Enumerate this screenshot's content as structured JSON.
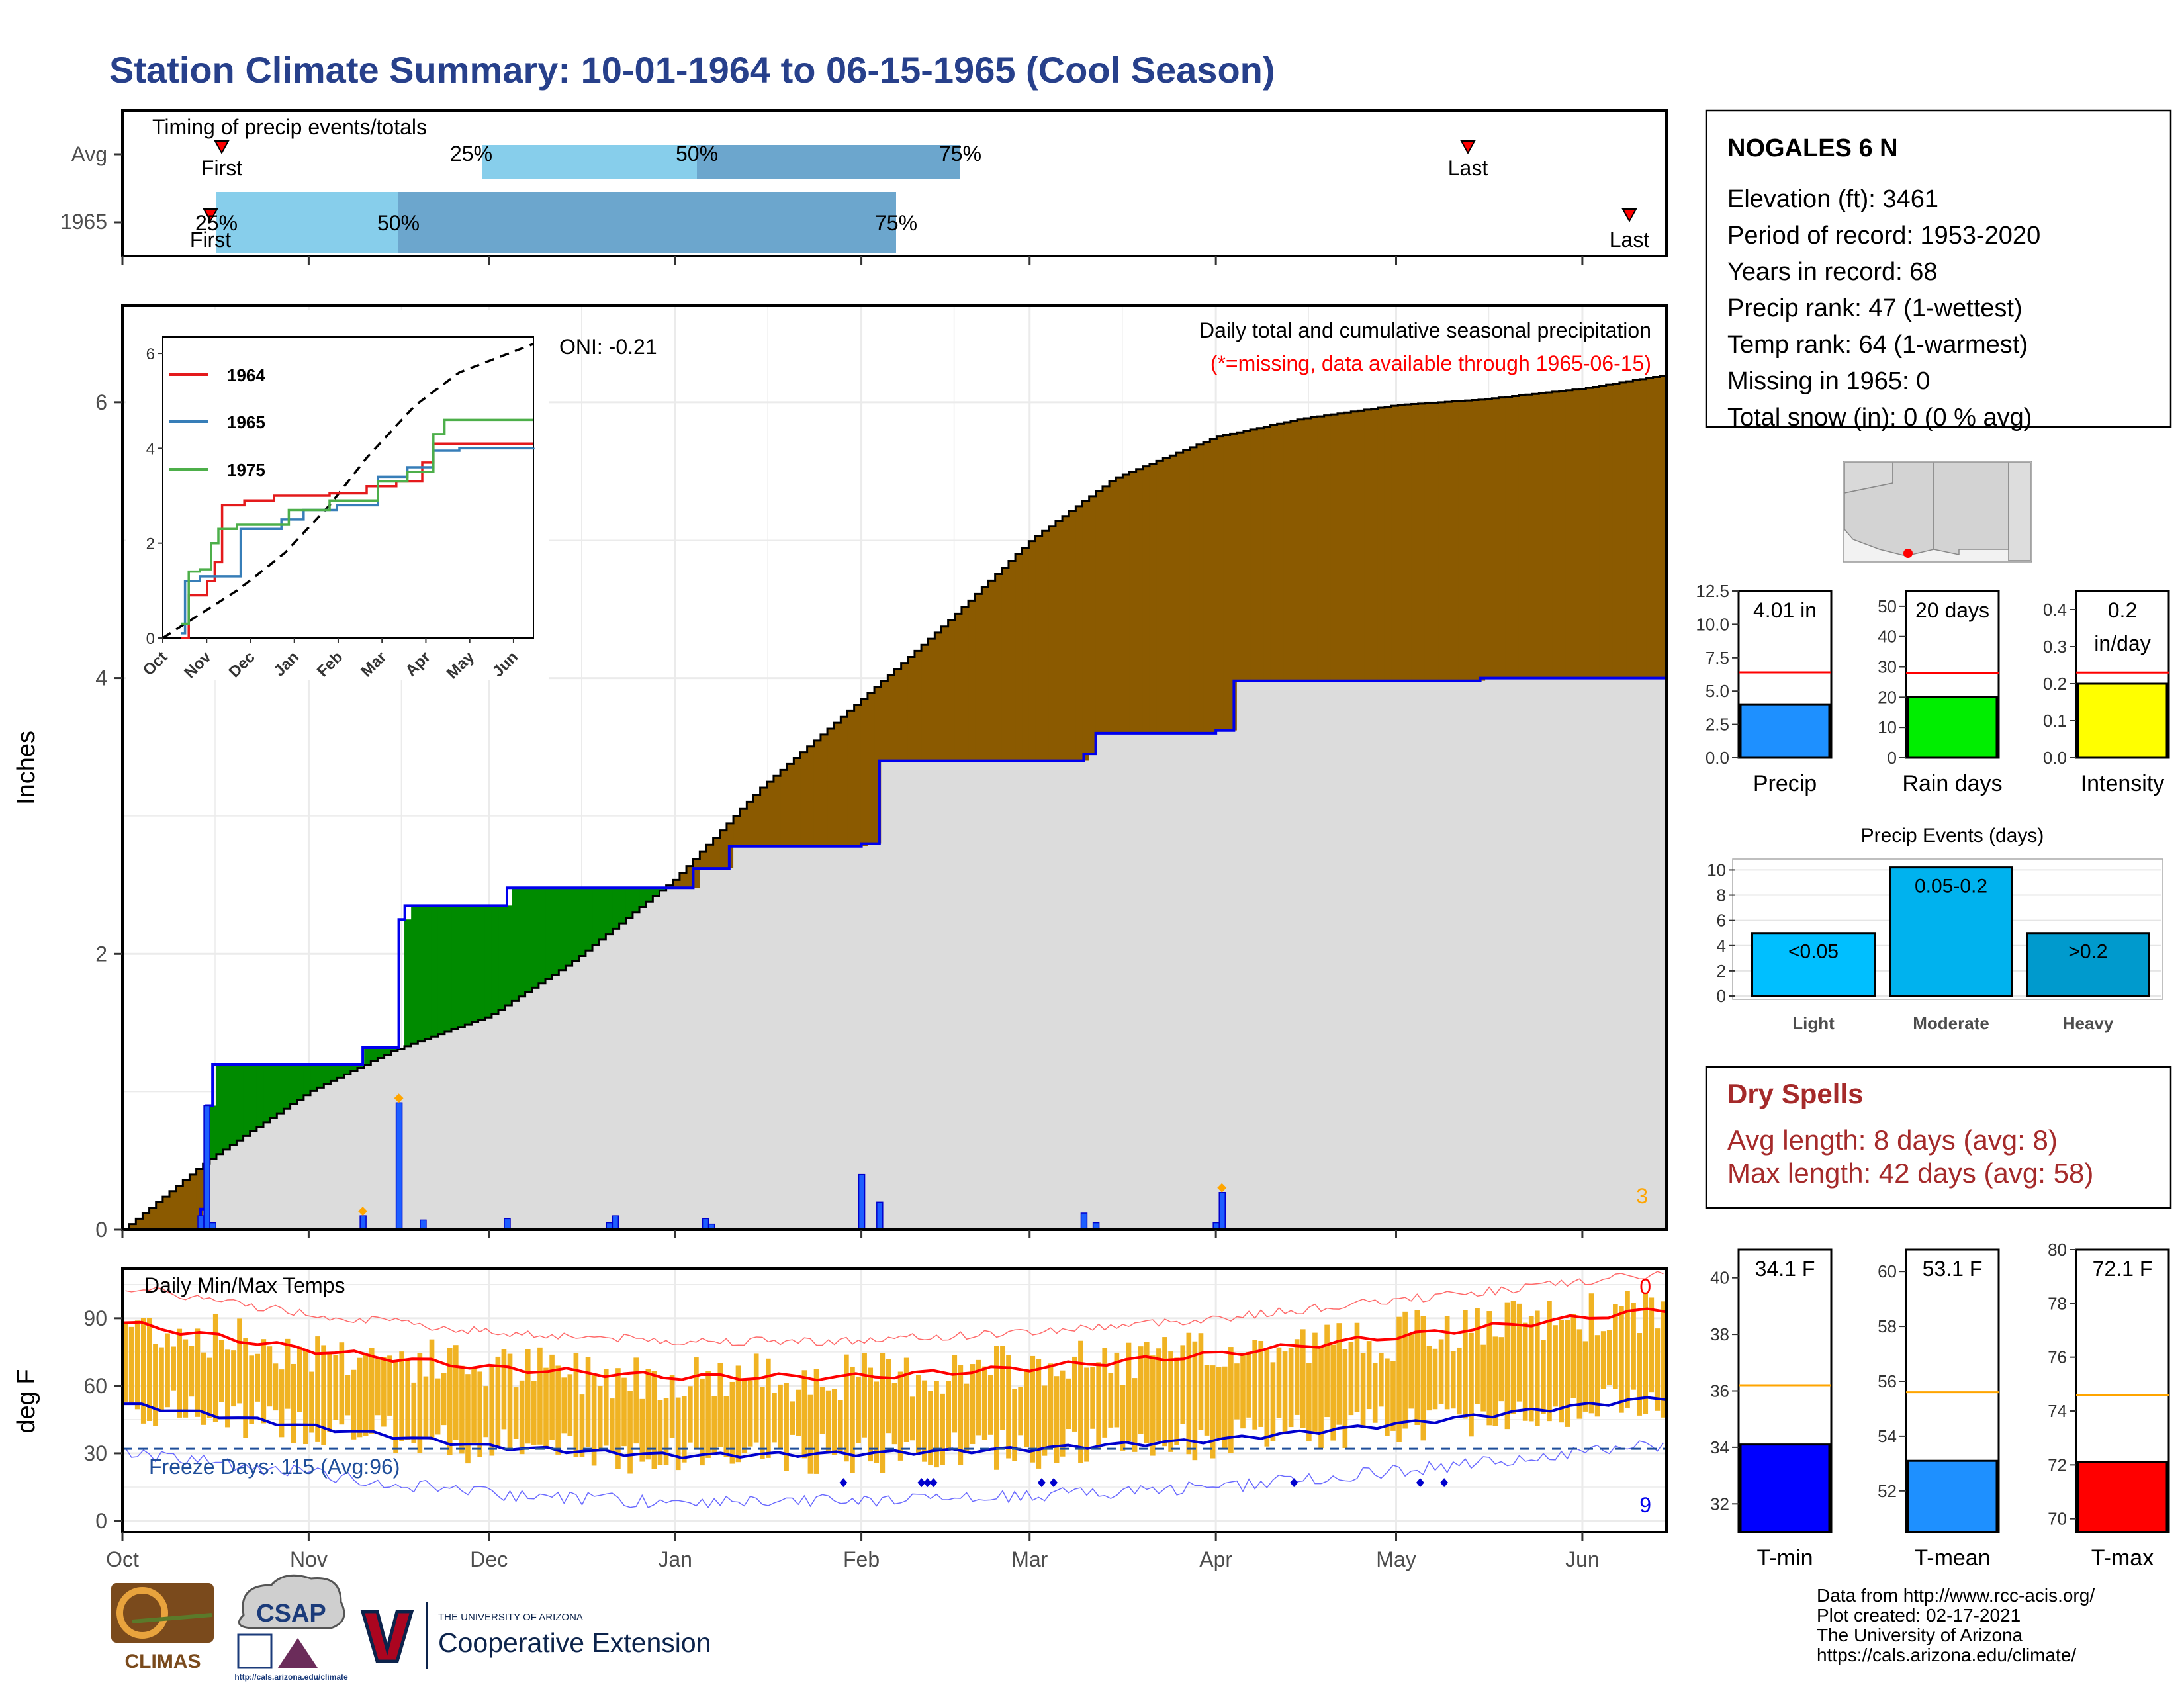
{
  "title": "Station Climate Summary: 10-01-1964 to 06-15-1965 (Cool Season)",
  "colors": {
    "title": "#27408B",
    "precip_above": "#8B5A00",
    "precip_below": "#008B00",
    "avg_fill": "#DCDCDC",
    "current_line": "#0000EE",
    "bar_light": "#87CEEB",
    "bar_dark": "#6CA6CD",
    "temp_bar": "#F0B323",
    "tmax_avg": "#FF0000",
    "tmin_avg": "#0000CD",
    "freeze_line": "#1F4E9A",
    "dry_spell": "#A52A2A"
  },
  "timing_panel": {
    "title": "Timing of precip events/totals",
    "rows": [
      {
        "label": "Avg",
        "first": "First",
        "last": "Last",
        "p25": "25%",
        "p50": "50%",
        "p75": "75%"
      },
      {
        "label": "1965",
        "first": "First",
        "last": "Last",
        "p25": "25%",
        "p50": "50%",
        "p75": "75%"
      }
    ]
  },
  "precip_panel": {
    "ylabel": "Inches",
    "yticks": [
      "0",
      "2",
      "4",
      "6"
    ],
    "label1": "Daily total and cumulative seasonal precipitation",
    "label2": "(*=missing, data available through 1965-06-15)",
    "oni": "ONI: -0.21",
    "count_marker": "3"
  },
  "inset": {
    "yticks": [
      "0",
      "2",
      "4",
      "6"
    ],
    "xticks": [
      "Oct",
      "Nov",
      "Dec",
      "Jan",
      "Feb",
      "Mar",
      "Apr",
      "May",
      "Jun"
    ],
    "legend": [
      {
        "name": "1964",
        "color": "#E41A1C"
      },
      {
        "name": "1965",
        "color": "#377EB8"
      },
      {
        "name": "1975",
        "color": "#4DAF4A"
      }
    ]
  },
  "temp_panel": {
    "ylabel": "deg F",
    "yticks": [
      "0",
      "30",
      "60",
      "90"
    ],
    "title": "Daily Min/Max Temps",
    "freeze": "Freeze Days: 115 (Avg:96)",
    "count_top": "0",
    "count_bottom": "9",
    "xticks": [
      "Oct",
      "Nov",
      "Dec",
      "Jan",
      "Feb",
      "Mar",
      "Apr",
      "May",
      "Jun"
    ]
  },
  "station": {
    "name": "NOGALES 6 N",
    "lines": [
      "Elevation (ft): 3461",
      "Period of record: 1953-2020",
      "Years in record: 68",
      "Precip rank: 47 (1-wettest)",
      "Temp rank: 64 (1-warmest)",
      "Missing in 1965: 0",
      "Total snow (in): 0 (0 % avg)"
    ]
  },
  "gauges": [
    {
      "label": "Precip",
      "value_text": "4.01 in",
      "value": 4.01,
      "avg": 6.4,
      "ymax": 12.5,
      "ticks": [
        "0.0",
        "2.5",
        "5.0",
        "7.5",
        "10.0",
        "12.5"
      ],
      "color": "#1E90FF"
    },
    {
      "label": "Rain days",
      "value_text": "20 days",
      "value": 20,
      "avg": 28,
      "ymax": 55,
      "ticks": [
        "0",
        "10",
        "20",
        "30",
        "40",
        "50"
      ],
      "color": "#00EE00"
    },
    {
      "label": "Intensity",
      "value_text": "0.2",
      "value_text2": "in/day",
      "value": 0.2,
      "avg": 0.23,
      "ymax": 0.45,
      "ticks": [
        "0.0",
        "0.1",
        "0.2",
        "0.3",
        "0.4"
      ],
      "color": "#FFFF00"
    }
  ],
  "precip_events": {
    "title": "Precip Events (days)",
    "yticks": [
      "0",
      "2",
      "4",
      "6",
      "8",
      "10"
    ],
    "bars": [
      {
        "category": "Light",
        "label": "<0.05",
        "value": 5,
        "color": "#00BFFF"
      },
      {
        "category": "Moderate",
        "label": "0.05-0.2",
        "value": 10.2,
        "color": "#00B2EE"
      },
      {
        "category": "Heavy",
        "label": ">0.2",
        "value": 5,
        "color": "#009ACD"
      }
    ]
  },
  "dry_spells": {
    "title": "Dry Spells",
    "avg": "Avg length: 8 days (avg: 8)",
    "max": "Max length: 42 days (avg: 58)"
  },
  "temp_gauges": [
    {
      "label": "T-min",
      "value_text": "34.1 F",
      "value": 34.1,
      "avg": 36.2,
      "ymin": 31,
      "ymax": 41,
      "ticks": [
        "32",
        "34",
        "36",
        "38",
        "40"
      ],
      "color": "#0000FF"
    },
    {
      "label": "T-mean",
      "value_text": "53.1 F",
      "value": 53.1,
      "avg": 55.6,
      "ymin": 50.5,
      "ymax": 60.8,
      "ticks": [
        "52",
        "54",
        "56",
        "58",
        "60"
      ],
      "color": "#1E90FF"
    },
    {
      "label": "T-max",
      "value_text": "72.1 F",
      "value": 72.1,
      "avg": 74.6,
      "ymin": 69.5,
      "ymax": 80,
      "ticks": [
        "70",
        "72",
        "74",
        "76",
        "78",
        "80"
      ],
      "color": "#FF0000"
    }
  ],
  "footer": {
    "lines": [
      "Data from http://www.rcc-acis.org/",
      "Plot created: 02-17-2021",
      "The University of Arizona",
      "https://cals.arizona.edu/climate/"
    ],
    "logo_climas": "CLIMAS",
    "logo_csap": "CSAP",
    "logo_csap_url": "http://cals.arizona.edu/climate",
    "ua_small": "THE UNIVERSITY OF ARIZONA",
    "ua_big": "Cooperative Extension"
  },
  "chart_data": [
    {
      "type": "area",
      "title": "Daily total and cumulative seasonal precipitation",
      "ylabel": "Inches",
      "ylim": [
        0,
        6.7
      ],
      "x_range": [
        "1964-10-01",
        "1965-06-15"
      ],
      "series": [
        {
          "name": "Avg",
          "x": [
            "1964-10-01",
            "1964-10-15",
            "1964-11-01",
            "1964-11-15",
            "1964-12-01",
            "1964-12-15",
            "1965-01-01",
            "1965-01-15",
            "1965-02-01",
            "1965-02-15",
            "1965-03-01",
            "1965-03-15",
            "1965-04-01",
            "1965-04-15",
            "1965-05-01",
            "1965-05-15",
            "1965-06-01",
            "1965-06-15"
          ],
          "values": [
            0.0,
            0.5,
            1.0,
            1.3,
            1.55,
            1.95,
            2.55,
            3.2,
            3.85,
            4.4,
            5.0,
            5.45,
            5.75,
            5.88,
            5.98,
            6.02,
            6.1,
            6.2
          ]
        },
        {
          "name": "1965",
          "x": [
            "1964-10-14",
            "1964-10-15",
            "1964-10-16",
            "1964-11-10",
            "1964-11-16",
            "1964-11-17",
            "1964-12-04",
            "1965-01-04",
            "1965-01-10",
            "1965-02-01",
            "1965-02-04",
            "1965-03-10",
            "1965-03-12",
            "1965-04-01",
            "1965-04-04",
            "1965-05-15",
            "1965-06-15"
          ],
          "values": [
            0.15,
            0.9,
            1.2,
            1.32,
            2.25,
            2.35,
            2.48,
            2.62,
            2.78,
            2.8,
            3.4,
            3.45,
            3.6,
            3.62,
            3.98,
            4.0,
            4.01
          ]
        }
      ]
    },
    {
      "type": "bar",
      "title": "Daily precip",
      "x": [
        "1964-10-14",
        "1964-10-15",
        "1964-10-16",
        "1964-11-10",
        "1964-11-16",
        "1964-11-20",
        "1964-12-04",
        "1964-12-21",
        "1964-12-22",
        "1965-01-06",
        "1965-01-07",
        "1965-02-01",
        "1965-02-04",
        "1965-03-10",
        "1965-03-12",
        "1965-04-01",
        "1965-04-02",
        "1965-05-15"
      ],
      "values": [
        0.1,
        0.9,
        0.05,
        0.1,
        0.92,
        0.07,
        0.08,
        0.05,
        0.1,
        0.08,
        0.04,
        0.4,
        0.2,
        0.12,
        0.05,
        0.05,
        0.27,
        0.01
      ]
    },
    {
      "type": "line",
      "title": "Daily Min/Max Temps",
      "ylabel": "deg F",
      "ylim": [
        -5,
        112
      ],
      "series": [
        {
          "name": "Avg Tmax",
          "x": [
            "1964-10-01",
            "1964-11-01",
            "1964-12-01",
            "1965-01-01",
            "1965-02-01",
            "1965-03-01",
            "1965-04-01",
            "1965-05-01",
            "1965-06-15"
          ],
          "values": [
            88,
            76,
            68,
            64,
            64,
            68,
            74,
            82,
            94
          ]
        },
        {
          "name": "Avg Tmin",
          "x": [
            "1964-10-01",
            "1964-11-01",
            "1964-12-01",
            "1965-01-01",
            "1965-02-01",
            "1965-03-01",
            "1965-04-01",
            "1965-05-01",
            "1965-06-15"
          ],
          "values": [
            52,
            42,
            33,
            29,
            30,
            32,
            36,
            43,
            55
          ]
        },
        {
          "name": "Freeze",
          "values": [
            32,
            32
          ]
        }
      ]
    }
  ]
}
